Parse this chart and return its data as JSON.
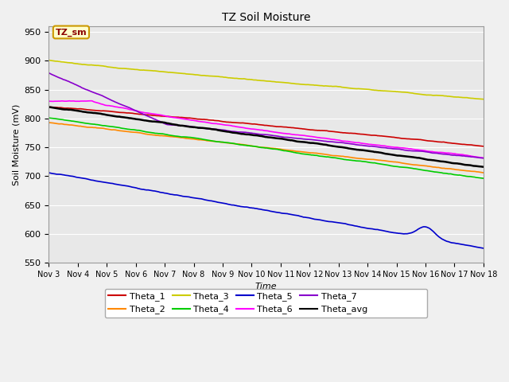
{
  "title": "TZ Soil Moisture",
  "xlabel": "Time",
  "ylabel": "Soil Moisture (mV)",
  "ylim": [
    550,
    960
  ],
  "yticks": [
    550,
    600,
    650,
    700,
    750,
    800,
    850,
    900,
    950
  ],
  "x_labels": [
    "Nov 3",
    "Nov 4",
    "Nov 5",
    "Nov 6",
    "Nov 7",
    "Nov 8",
    "Nov 9",
    "Nov 10",
    "Nov 11",
    "Nov 12",
    "Nov 13",
    "Nov 14",
    "Nov 15",
    "Nov 16",
    "Nov 17",
    "Nov 18"
  ],
  "series_order": [
    "Theta_1",
    "Theta_2",
    "Theta_3",
    "Theta_4",
    "Theta_5",
    "Theta_6",
    "Theta_7",
    "Theta_avg"
  ],
  "colors": {
    "Theta_1": "#cc0000",
    "Theta_2": "#ff8800",
    "Theta_3": "#cccc00",
    "Theta_4": "#00cc00",
    "Theta_5": "#0000cc",
    "Theta_6": "#ff00ff",
    "Theta_7": "#8800cc",
    "Theta_avg": "#000000"
  },
  "background_color": "#e8e8e8",
  "fig_facecolor": "#f0f0f0",
  "num_points": 400,
  "legend_ncol_row1": 6,
  "legend_ncol_row2": 2
}
